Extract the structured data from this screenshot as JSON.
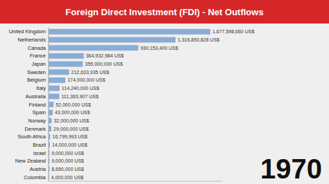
{
  "chart_data": {
    "type": "bar",
    "orientation": "horizontal",
    "title": "Foreign Direct Investment (FDI) - Net Outflows",
    "categories": [
      "United Kingdom",
      "Netherlands",
      "Canada",
      "France",
      "Japan",
      "Sweden",
      "Belgium",
      "Italy",
      "Australia",
      "Finland",
      "Spain",
      "Norway",
      "Denmark",
      "South Africa",
      "Brazil",
      "Israel",
      "New Zealand",
      "Austria",
      "Colombia"
    ],
    "values": [
      1677598660,
      1316850828,
      930153400,
      364932984,
      355000000,
      212633935,
      174000000,
      114240000,
      111363907,
      52000000,
      43000000,
      32000000,
      29000000,
      16799993,
      14000000,
      9000000,
      9000000,
      8650000,
      4000000
    ],
    "value_labels": [
      "1,677,598,660 US$",
      "1,316,850,828 US$",
      "930,153,400 US$",
      "364,932,984 US$",
      "355,000,000 US$",
      "212,633,935 US$",
      "174,000,000 US$",
      "114,240,000 US$",
      "111,363,907 US$",
      "52,000,000 US$",
      "43,000,000 US$",
      "32,000,000 US$",
      "29,000,000 US$",
      "16,799,993 US$",
      "14,000,000 US$",
      "9,000,000 US$",
      "9,000,000 US$",
      "8,650,000 US$",
      "4,000,000 US$"
    ],
    "color": "#8aadd4",
    "xlim": [
      0,
      1800000000
    ],
    "data_labels": true,
    "tick_labels": "y",
    "grid": false,
    "annotations": [
      "1970"
    ]
  }
}
